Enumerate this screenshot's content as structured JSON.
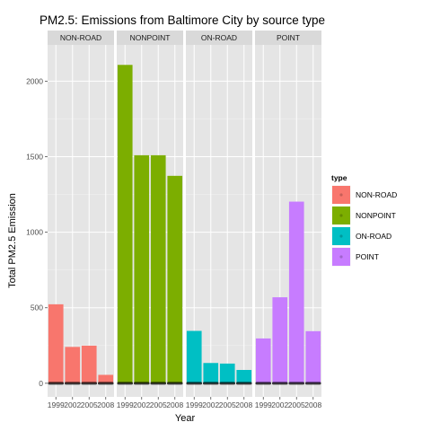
{
  "chart_data": {
    "type": "bar",
    "title": "PM2.5: Emissions from Baltimore  City by source type",
    "xlabel": "Year",
    "ylabel": "Total PM2.5 Emission",
    "categories": [
      "1999",
      "2002",
      "2005",
      "2008"
    ],
    "ylim": [
      -90,
      2240
    ],
    "yticks": [
      0,
      500,
      1000,
      1500,
      2000
    ],
    "grid": true,
    "legend": {
      "title": "type",
      "placement": "right"
    },
    "facets": [
      {
        "name": "NON-ROAD",
        "color": "#F8766D",
        "values": [
          522.9,
          240.8,
          248.9,
          55.8
        ]
      },
      {
        "name": "NONPOINT",
        "color": "#7CAE00",
        "values": [
          2107.6,
          1509.5,
          1509.5,
          1373.2
        ]
      },
      {
        "name": "ON-ROAD",
        "color": "#00BFC4",
        "values": [
          346.8,
          134.3,
          130.4,
          88.3
        ]
      },
      {
        "name": "POINT",
        "color": "#C77CFF",
        "values": [
          296.8,
          569.3,
          1202.5,
          344.98
        ]
      }
    ]
  }
}
